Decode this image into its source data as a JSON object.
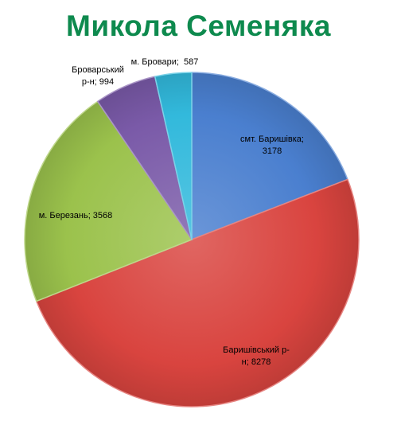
{
  "chart_data": {
    "type": "pie",
    "title": "Микола Семеняка",
    "title_color": "#0e8a4e",
    "slices": [
      {
        "label_lines": [
          "смт. Баришівка;",
          "3178"
        ],
        "label": "смт. Баришівка",
        "value": 3178,
        "color": "#4a7fcf"
      },
      {
        "label_lines": [
          "Баришівський р-",
          "н; 8278"
        ],
        "label": "Баришівський р-н",
        "value": 8278,
        "color": "#d9443f"
      },
      {
        "label_lines": [
          "м. Березань; 3568"
        ],
        "label": "м. Березань",
        "value": 3568,
        "color": "#9bc24c"
      },
      {
        "label_lines": [
          "Броварський",
          "р-н; 994"
        ],
        "label": "Броварський р-н",
        "value": 994,
        "color": "#7a5aa8"
      },
      {
        "label_lines": [
          "м. Бровари;  587"
        ],
        "label": "м. Бровари",
        "value": 587,
        "color": "#32b9dc"
      }
    ],
    "start_angle_deg": 0,
    "direction": "clockwise",
    "legend": "none",
    "style": "3d-shaded"
  }
}
